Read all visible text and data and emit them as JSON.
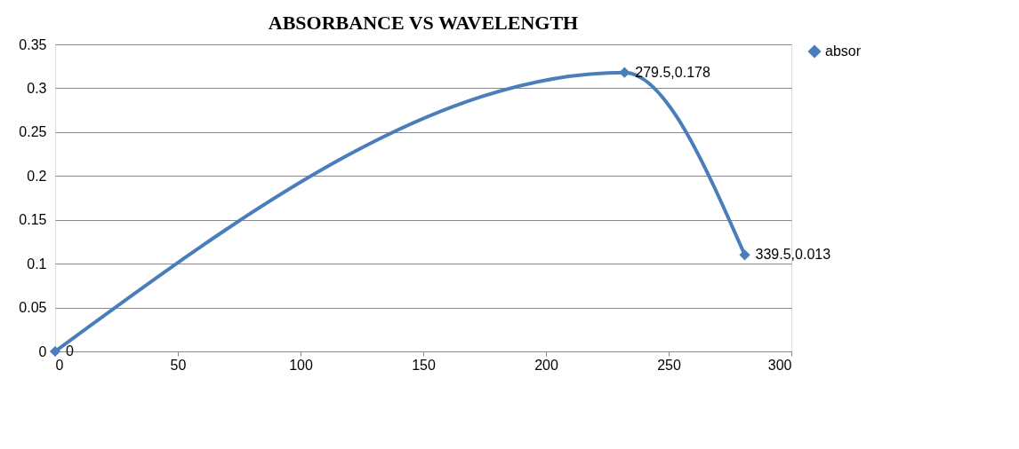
{
  "chart_data": {
    "type": "line",
    "title": "ABSORBANCE VS WAVELENGTH",
    "x": [
      0,
      232,
      281
    ],
    "series": [
      {
        "name": "absor",
        "color": "#4a7ebb",
        "values": [
          0,
          0.318,
          0.11
        ],
        "value_labels": [
          "0",
          "279.5,0.178",
          "339.5,0.013"
        ]
      }
    ],
    "xlim": [
      0,
      300
    ],
    "xticks": [
      0,
      50,
      100,
      150,
      200,
      250,
      300
    ],
    "ylim": [
      0,
      0.35
    ],
    "yticks": [
      0,
      0.05,
      0.1,
      0.15,
      0.2,
      0.25,
      0.3,
      0.35
    ],
    "grid": "y",
    "legend": "right",
    "marker": "diamond",
    "line_style": "solid"
  }
}
